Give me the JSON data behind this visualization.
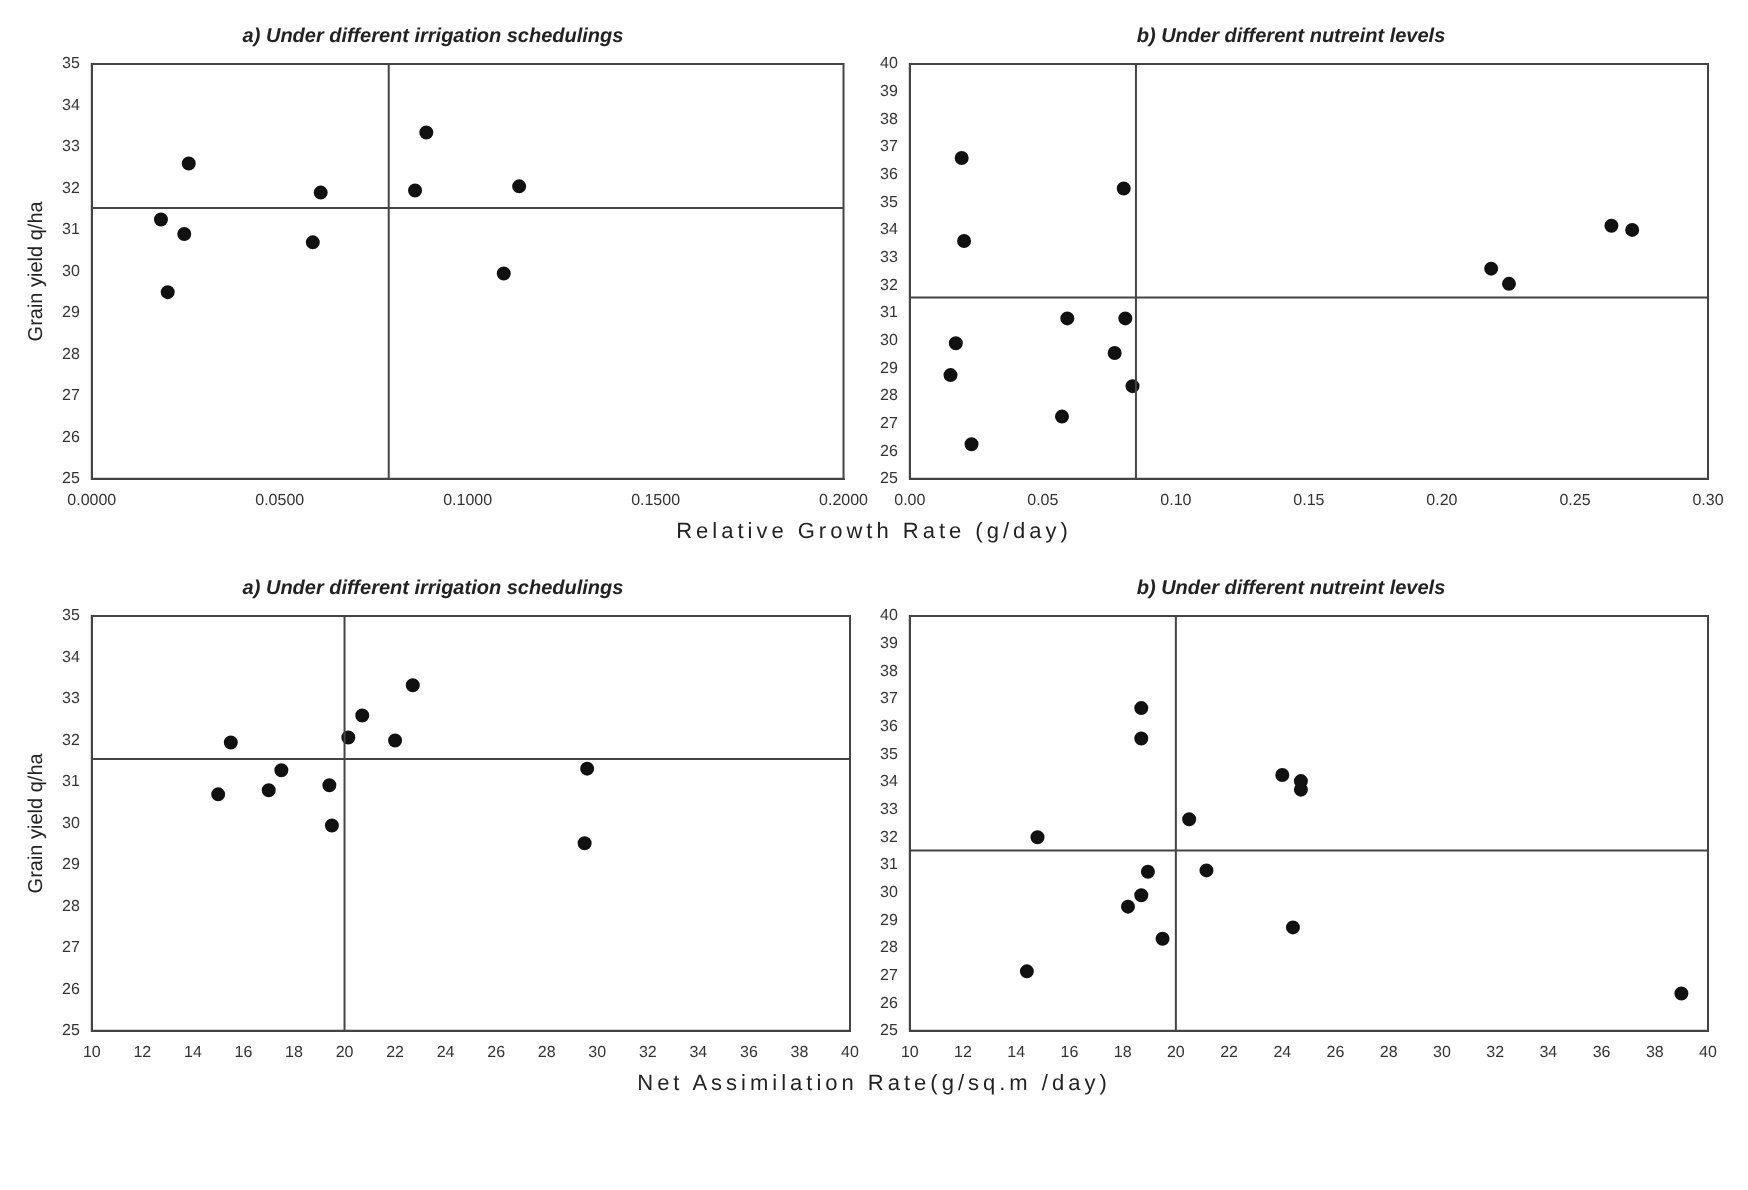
{
  "chart_data": [
    {
      "type": "scatter",
      "title": "a) Under different irrigation schedulings",
      "ylabel": "Grain yield q/ha",
      "xlabel": "Relative Growth Rate (g/day)",
      "color": "#111111",
      "marker": "circle",
      "x": [
        0.0184,
        0.0246,
        0.0202,
        0.0258,
        0.0588,
        0.0609,
        0.086,
        0.089,
        0.1096,
        0.1137
      ],
      "values": [
        31.25,
        30.9,
        29.5,
        32.6,
        30.7,
        31.9,
        31.95,
        33.35,
        29.95,
        32.05
      ],
      "xlim": [
        0,
        0.2
      ],
      "xticks": [
        {
          "value": 0,
          "label": "0.0000"
        },
        {
          "value": 0.05,
          "label": "0.0500"
        },
        {
          "value": 0.1,
          "label": "0.1000"
        },
        {
          "value": 0.15,
          "label": "0.1500"
        },
        {
          "value": 0.2,
          "label": "0.2000"
        }
      ],
      "ylim": [
        25,
        35
      ],
      "yticks": [
        25,
        26,
        27,
        28,
        29,
        30,
        31,
        32,
        33,
        34,
        35
      ],
      "ref_lines": [
        {
          "axis": "x",
          "value": 0.079
        },
        {
          "axis": "y",
          "value": 31.53
        }
      ]
    },
    {
      "type": "scatter",
      "title": "b) Under different nutreint levels",
      "color": "#111111",
      "marker": "circle",
      "x": [
        0.0195,
        0.0204,
        0.0173,
        0.0153,
        0.0232,
        0.0804,
        0.0592,
        0.0572,
        0.077,
        0.081,
        0.0837,
        0.2185,
        0.2252,
        0.2637,
        0.2715
      ],
      "values": [
        36.6,
        33.6,
        29.9,
        28.75,
        26.25,
        35.5,
        30.8,
        27.25,
        29.55,
        30.8,
        28.35,
        32.6,
        32.05,
        34.15,
        34.0
      ],
      "xlim": [
        0,
        0.3
      ],
      "xticks": [
        {
          "value": 0,
          "label": "0.00"
        },
        {
          "value": 0.05,
          "label": "0.05"
        },
        {
          "value": 0.1,
          "label": "0.10"
        },
        {
          "value": 0.15,
          "label": "0.15"
        },
        {
          "value": 0.2,
          "label": "0.20"
        },
        {
          "value": 0.25,
          "label": "0.25"
        },
        {
          "value": 0.3,
          "label": "0.30"
        }
      ],
      "ylim": [
        25,
        40
      ],
      "yticks": [
        25,
        26,
        27,
        28,
        29,
        30,
        31,
        32,
        33,
        34,
        35,
        36,
        37,
        38,
        39,
        40
      ],
      "ref_lines": [
        {
          "axis": "x",
          "value": 0.085
        },
        {
          "axis": "y",
          "value": 31.56
        }
      ]
    },
    {
      "type": "scatter",
      "title": "a) Under different irrigation schedulings",
      "ylabel": "Grain yield q/ha",
      "xlabel": "Net Assimilation Rate(g/sq.m /day)",
      "color": "#111111",
      "marker": "circle",
      "x": [
        15.0,
        15.5,
        17.0,
        17.5,
        19.4,
        19.5,
        20.15,
        20.7,
        22.0,
        22.7,
        29.6,
        29.5
      ],
      "values": [
        30.7,
        31.95,
        30.8,
        31.28,
        30.92,
        29.95,
        32.07,
        32.6,
        32.0,
        33.33,
        31.32,
        29.52
      ],
      "xlim": [
        10,
        40
      ],
      "xticks": [
        10,
        12,
        14,
        16,
        18,
        20,
        22,
        24,
        26,
        28,
        30,
        32,
        34,
        36,
        38,
        40
      ],
      "ylim": [
        25,
        35
      ],
      "yticks": [
        25,
        26,
        27,
        28,
        29,
        30,
        31,
        32,
        33,
        34,
        35
      ],
      "ref_lines": [
        {
          "axis": "x",
          "value": 20
        },
        {
          "axis": "y",
          "value": 31.55
        }
      ]
    },
    {
      "type": "scatter",
      "title": "b) Under different nutreint levels",
      "color": "#111111",
      "marker": "circle",
      "x": [
        14.4,
        14.8,
        18.7,
        18.7,
        18.2,
        18.7,
        18.95,
        19.5,
        20.5,
        21.15,
        24.0,
        24.7,
        24.7,
        24.4,
        39.0
      ],
      "values": [
        27.15,
        32.0,
        36.67,
        35.57,
        29.49,
        29.9,
        30.75,
        28.33,
        32.65,
        30.8,
        34.25,
        34.03,
        33.72,
        28.74,
        26.35
      ],
      "xlim": [
        10,
        40
      ],
      "xticks": [
        10,
        12,
        14,
        16,
        18,
        20,
        22,
        24,
        26,
        28,
        30,
        32,
        34,
        36,
        38,
        40
      ],
      "ylim": [
        25,
        40
      ],
      "yticks": [
        25,
        26,
        27,
        28,
        29,
        30,
        31,
        32,
        33,
        34,
        35,
        36,
        37,
        38,
        39,
        40
      ],
      "ref_lines": [
        {
          "axis": "x",
          "value": 20
        },
        {
          "axis": "y",
          "value": 31.52
        }
      ]
    }
  ]
}
